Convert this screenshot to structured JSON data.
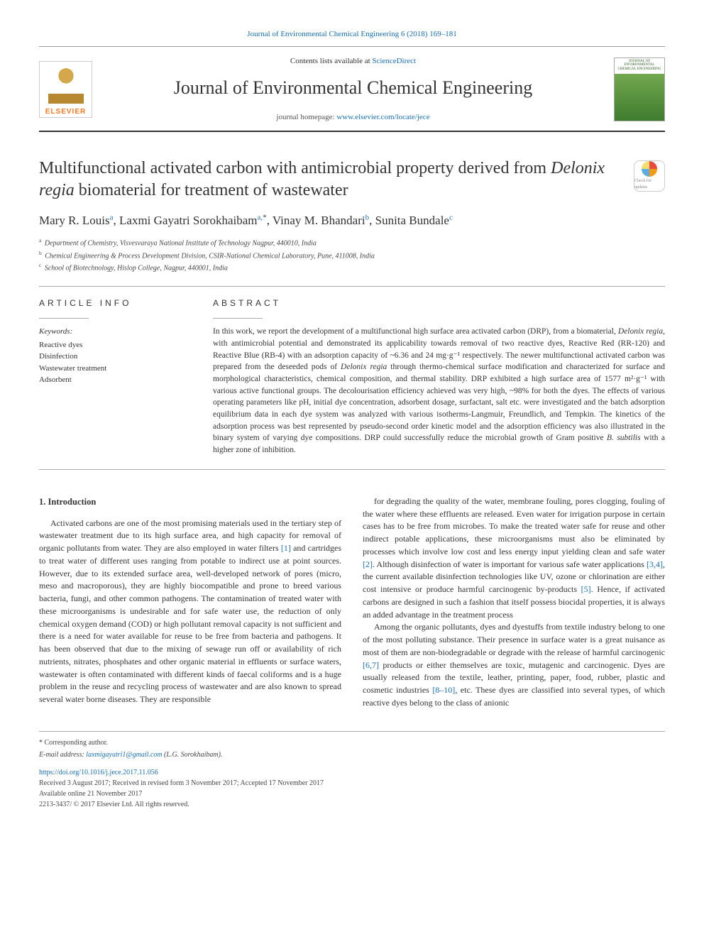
{
  "header": {
    "running_head": "Journal of Environmental Chemical Engineering 6 (2018) 169–181",
    "contents_prefix": "Contents lists available at ",
    "contents_link": "ScienceDirect",
    "journal_name": "Journal of Environmental Chemical Engineering",
    "homepage_prefix": "journal homepage: ",
    "homepage_link": "www.elsevier.com/locate/jece",
    "publisher_logo_text": "ELSEVIER",
    "cover_title": "JOURNAL OF ENVIRONMENTAL CHEMICAL ENGINEERING"
  },
  "crossmark": {
    "label": "Check for updates"
  },
  "article": {
    "title_pre": "Multifunctional activated carbon with antimicrobial property derived from ",
    "title_em": "Delonix regia",
    "title_post": " biomaterial for treatment of wastewater",
    "authors_html": "Mary R. Louis<sup>a</sup>, Laxmi Gayatri Sorokhaibam<sup>a,</sup>*, Vinay M. Bhandari<sup>b</sup>, Sunita Bundale<sup>c</sup>",
    "authors": [
      {
        "name": "Mary R. Louis",
        "sup": "a"
      },
      {
        "name": "Laxmi Gayatri Sorokhaibam",
        "sup": "a,*",
        "corresponding": true
      },
      {
        "name": "Vinay M. Bhandari",
        "sup": "b"
      },
      {
        "name": "Sunita Bundale",
        "sup": "c"
      }
    ],
    "affiliations": [
      {
        "sup": "a",
        "text": "Department of Chemistry, Visvesvaraya National Institute of Technology Nagpur, 440010, India"
      },
      {
        "sup": "b",
        "text": "Chemical Engineering & Process Development Division, CSIR-National Chemical Laboratory, Pune, 411008, India"
      },
      {
        "sup": "c",
        "text": "School of Biotechnology, Hislop College, Nagpur, 440001, India"
      }
    ]
  },
  "info": {
    "heading": "ARTICLE INFO",
    "keywords_label": "Keywords:",
    "keywords": [
      "Reactive dyes",
      "Disinfection",
      "Wastewater treatment",
      "Adsorbent"
    ]
  },
  "abstract": {
    "heading": "ABSTRACT",
    "text": "In this work, we report the development of a multifunctional high surface area activated carbon (DRP), from a biomaterial, Delonix regia, with antimicrobial potential and demonstrated its applicability towards removal of two reactive dyes, Reactive Red (RR-120) and Reactive Blue (RB-4) with an adsorption capacity of ~6.36 and 24 mg·g⁻¹ respectively. The newer multifunctional activated carbon was prepared from the deseeded pods of Delonix regia through thermo-chemical surface modification and characterized for surface and morphological characteristics, chemical composition, and thermal stability. DRP exhibited a high surface area of 1577 m²·g⁻¹ with various active functional groups. The decolourisation efficiency achieved was very high, ~98% for both the dyes. The effects of various operating parameters like pH, initial dye concentration, adsorbent dosage, surfactant, salt etc. were investigated and the batch adsorption equilibrium data in each dye system was analyzed with various isotherms-Langmuir, Freundlich, and Tempkin. The kinetics of the adsorption process was best represented by pseudo-second order kinetic model and the adsorption efficiency was also illustrated in the binary system of varying dye compositions. DRP could successfully reduce the microbial growth of Gram positive B. subtilis with a higher zone of inhibition."
  },
  "body": {
    "section_heading": "1. Introduction",
    "col1_p1": "Activated carbons are one of the most promising materials used in the tertiary step of wastewater treatment due to its high surface area, and high capacity for removal of organic pollutants from water. They are also employed in water filters [1] and cartridges to treat water of different uses ranging from potable to indirect use at point sources. However, due to its extended surface area, well-developed network of pores (micro, meso and macroporous), they are highly biocompatible and prone to breed various bacteria, fungi, and other common pathogens. The contamination of treated water with these microorganisms is undesirable and for safe water use, the reduction of only chemical oxygen demand (COD) or high pollutant removal capacity is not sufficient and there is a need for water available for reuse to be free from bacteria and pathogens. It has been observed that due to the mixing of sewage run off or availability of rich nutrients, nitrates, phosphates and other organic material in effluents or surface waters, wastewater is often contaminated with different kinds of faecal coliforms and is a huge problem in the reuse and recycling process of wastewater and are also known to spread several water borne diseases. They are responsible",
    "col2_p1": "for degrading the quality of the water, membrane fouling, pores clogging, fouling of the water where these effluents are released. Even water for irrigation purpose in certain cases has to be free from microbes. To make the treated water safe for reuse and other indirect potable applications, these microorganisms must also be eliminated by processes which involve low cost and less energy input yielding clean and safe water [2]. Although disinfection of water is important for various safe water applications [3,4], the current available disinfection technologies like UV, ozone or chlorination are either cost intensive or produce harmful carcinogenic by-products [5]. Hence, if activated carbons are designed in such a fashion that itself possess biocidal properties, it is always an added advantage in the treatment process",
    "col2_p2": "Among the organic pollutants, dyes and dyestuffs from textile industry belong to one of the most polluting substance. Their presence in surface water is a great nuisance as most of them are non-biodegradable or degrade with the release of harmful carcinogenic [6,7] products or either themselves are toxic, mutagenic and carcinogenic. Dyes are usually released from the textile, leather, printing, paper, food, rubber, plastic and cosmetic industries [8–10], etc. These dyes are classified into several types, of which reactive dyes belong to the class of anionic",
    "refs": {
      "r1": "[1]",
      "r2": "[2]",
      "r34": "[3,4]",
      "r5": "[5]",
      "r67": "[6,7]",
      "r810": "[8–10]"
    }
  },
  "footer": {
    "corr_label": "* Corresponding author.",
    "email_label": "E-mail address: ",
    "email": "laxmigayatri1@gmail.com",
    "email_person": " (L.G. Sorokhaibam).",
    "doi": "https://doi.org/10.1016/j.jece.2017.11.056",
    "received": "Received 3 August 2017; Received in revised form 3 November 2017; Accepted 17 November 2017",
    "available": "Available online 21 November 2017",
    "copyright": "2213-3437/ © 2017 Elsevier Ltd. All rights reserved."
  },
  "colors": {
    "link": "#1a6fb5",
    "elsevier_orange": "#f47920",
    "text": "#333333",
    "rule": "#aaaaaa"
  }
}
